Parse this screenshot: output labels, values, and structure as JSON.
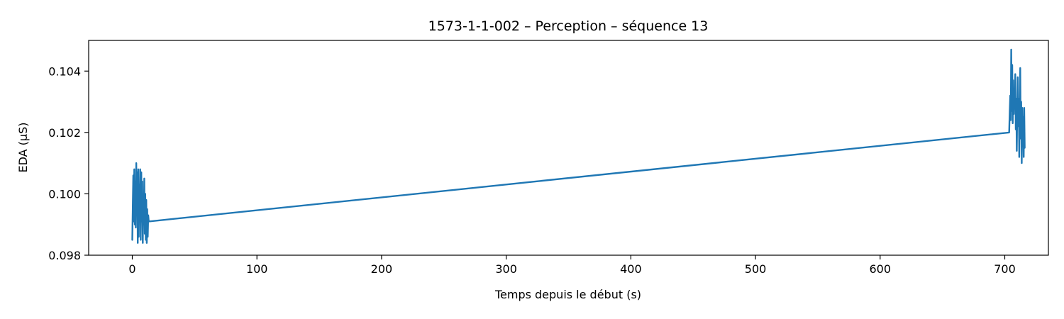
{
  "chart_data": {
    "type": "line",
    "title": "1573-1-1-002 – Perception – séquence 13",
    "xlabel": "Temps depuis le début (s)",
    "ylabel": "EDA (µS)",
    "xlim": [
      -35,
      735
    ],
    "ylim": [
      0.098,
      0.105
    ],
    "x_ticks": [
      0,
      100,
      200,
      300,
      400,
      500,
      600,
      700
    ],
    "y_ticks": [
      0.098,
      0.1,
      0.102,
      0.104
    ],
    "y_tick_labels": [
      "0.098",
      "0.100",
      "0.102",
      "0.104"
    ],
    "grid": false,
    "legend": "none",
    "series": [
      {
        "color": "#1f77b4",
        "x": [
          0,
          0.4,
          0.8,
          1.2,
          1.6,
          2.0,
          2.4,
          2.8,
          3.2,
          3.6,
          4.0,
          4.4,
          4.8,
          5.2,
          5.6,
          6.0,
          6.4,
          6.8,
          7.2,
          7.6,
          8.0,
          8.4,
          8.8,
          9.2,
          9.6,
          10.0,
          10.4,
          10.8,
          11.2,
          11.6,
          12.0,
          12.4,
          12.8,
          13.2,
          703.5,
          704.0,
          704.4,
          704.8,
          705.2,
          705.6,
          706.0,
          706.4,
          706.8,
          707.2,
          707.6,
          708.0,
          708.4,
          708.8,
          709.2,
          709.6,
          710.0,
          710.4,
          710.8,
          711.2,
          711.6,
          712.0,
          712.4,
          712.8,
          713.2,
          713.6,
          714.0,
          714.4,
          714.8,
          715.2,
          715.6,
          716.0
        ],
        "y": [
          0.0985,
          0.0996,
          0.1006,
          0.0991,
          0.1008,
          0.099,
          0.1004,
          0.0989,
          0.101,
          0.0994,
          0.1007,
          0.0984,
          0.1008,
          0.0986,
          0.1003,
          0.0991,
          0.1008,
          0.0985,
          0.1007,
          0.0991,
          0.1004,
          0.0984,
          0.1,
          0.099,
          0.1005,
          0.0987,
          0.1,
          0.0985,
          0.0998,
          0.0984,
          0.0995,
          0.0986,
          0.0993,
          0.0991,
          0.102,
          0.1027,
          0.1032,
          0.1024,
          0.1047,
          0.1027,
          0.1042,
          0.1023,
          0.1037,
          0.1026,
          0.1034,
          0.1028,
          0.1039,
          0.1021,
          0.1031,
          0.1014,
          0.1027,
          0.1038,
          0.1022,
          0.1031,
          0.1012,
          0.1029,
          0.1041,
          0.1018,
          0.103,
          0.101,
          0.1028,
          0.1016,
          0.1025,
          0.1012,
          0.1028,
          0.1015
        ]
      }
    ]
  }
}
